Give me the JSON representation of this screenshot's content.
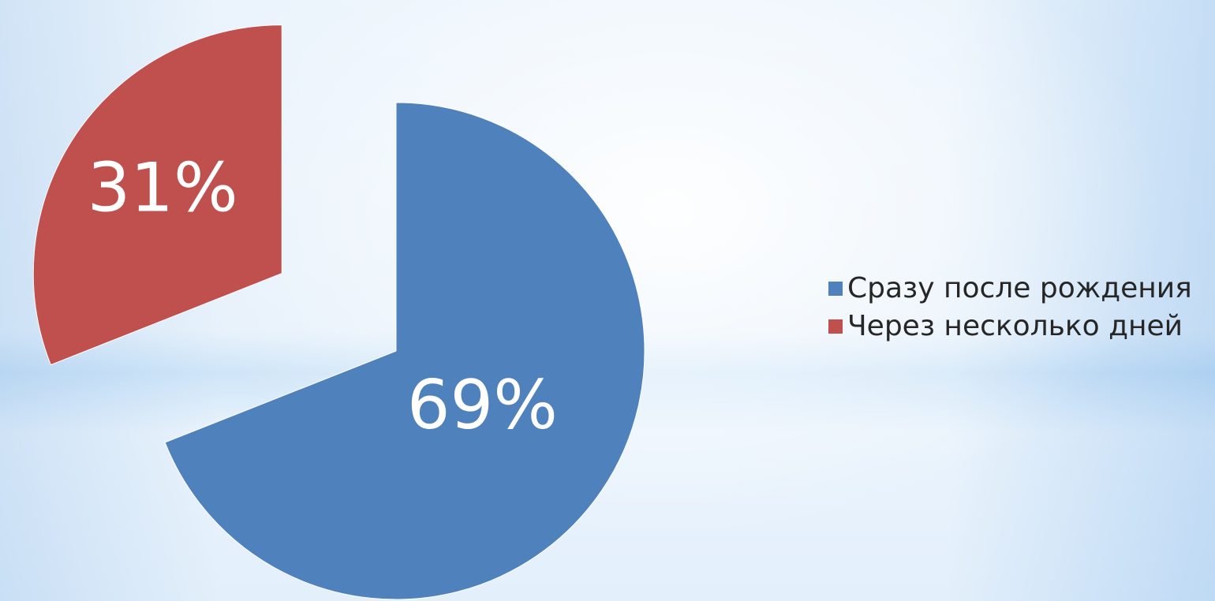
{
  "chart_data": {
    "type": "pie",
    "exploded": true,
    "categories": [
      "Сразу после рождения",
      "Через несколько дней"
    ],
    "values": [
      69,
      31
    ],
    "data_labels": [
      "69%",
      "31%"
    ],
    "colors": [
      "#4f81bd",
      "#c0504d"
    ],
    "title": "",
    "legend": "right"
  },
  "legend": {
    "items": [
      {
        "label": "Сразу после рождения",
        "color": "#4f81bd"
      },
      {
        "label": "Через несколько дней",
        "color": "#c0504d"
      }
    ]
  }
}
